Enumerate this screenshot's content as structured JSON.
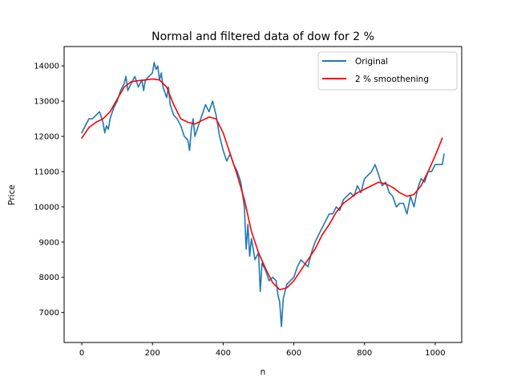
{
  "chart_data": {
    "type": "line",
    "title": "Normal and filtered data of dow for 2 %",
    "xlabel": "n",
    "ylabel": "Price",
    "xlim": [
      -50,
      1075
    ],
    "ylim": [
      6150,
      14550
    ],
    "xticks": [
      0,
      200,
      400,
      600,
      800,
      1000
    ],
    "yticks": [
      7000,
      8000,
      9000,
      10000,
      11000,
      12000,
      13000,
      14000
    ],
    "grid": false,
    "legend_position": "top-right",
    "series": [
      {
        "name": "Original",
        "color": "#1f77b4",
        "x": [
          0,
          10,
          20,
          30,
          40,
          50,
          60,
          65,
          70,
          75,
          80,
          90,
          100,
          110,
          120,
          125,
          130,
          140,
          150,
          160,
          170,
          175,
          180,
          190,
          200,
          205,
          210,
          215,
          220,
          225,
          230,
          240,
          245,
          250,
          260,
          270,
          280,
          290,
          300,
          305,
          310,
          315,
          320,
          330,
          340,
          350,
          360,
          370,
          380,
          390,
          400,
          410,
          420,
          430,
          440,
          450,
          460,
          465,
          470,
          475,
          480,
          490,
          500,
          505,
          510,
          520,
          530,
          540,
          550,
          555,
          560,
          565,
          570,
          575,
          580,
          590,
          600,
          610,
          620,
          630,
          640,
          650,
          660,
          670,
          680,
          690,
          700,
          710,
          720,
          730,
          740,
          750,
          760,
          770,
          780,
          790,
          800,
          810,
          820,
          830,
          840,
          850,
          860,
          870,
          880,
          890,
          900,
          910,
          920,
          930,
          940,
          950,
          960,
          970,
          980,
          990,
          1000,
          1010,
          1020,
          1025
        ],
        "values": [
          12100,
          12300,
          12500,
          12500,
          12600,
          12700,
          12400,
          12100,
          12300,
          12200,
          12500,
          12800,
          13000,
          13300,
          13500,
          13700,
          13300,
          13500,
          13700,
          13400,
          13600,
          13300,
          13600,
          13700,
          13800,
          14100,
          13900,
          14000,
          13600,
          13800,
          13400,
          13100,
          13400,
          12900,
          12600,
          12500,
          12300,
          12000,
          11900,
          11600,
          12200,
          12500,
          12000,
          12300,
          12600,
          12900,
          12700,
          13000,
          12600,
          12000,
          11600,
          11300,
          11500,
          11200,
          11000,
          10700,
          10000,
          8800,
          9500,
          8600,
          9100,
          8500,
          8700,
          7600,
          8400,
          8200,
          7900,
          8000,
          7900,
          7500,
          7300,
          6600,
          7400,
          7600,
          7800,
          7900,
          8000,
          8300,
          8500,
          8400,
          8300,
          8700,
          9000,
          9200,
          9400,
          9600,
          9800,
          9800,
          10000,
          9900,
          10200,
          10300,
          10400,
          10300,
          10600,
          10400,
          10800,
          10900,
          11000,
          11200,
          10900,
          10600,
          10700,
          10400,
          10300,
          10000,
          10100,
          10100,
          9800,
          10300,
          10000,
          10500,
          10800,
          10700,
          11000,
          11000,
          11200,
          11200,
          11200,
          11500
        ]
      },
      {
        "name": "2 % smoothening",
        "color": "#ff0000",
        "x": [
          0,
          20,
          40,
          60,
          80,
          100,
          120,
          140,
          160,
          180,
          200,
          220,
          240,
          260,
          280,
          300,
          320,
          340,
          360,
          380,
          400,
          420,
          440,
          460,
          480,
          500,
          520,
          540,
          560,
          580,
          600,
          620,
          640,
          660,
          680,
          700,
          720,
          740,
          760,
          780,
          800,
          820,
          840,
          860,
          880,
          900,
          920,
          940,
          960,
          980,
          1000,
          1020
        ],
        "values": [
          11950,
          12250,
          12400,
          12500,
          12700,
          13050,
          13400,
          13550,
          13580,
          13600,
          13630,
          13600,
          13400,
          12900,
          12500,
          12400,
          12350,
          12450,
          12550,
          12500,
          12100,
          11500,
          10900,
          10200,
          9300,
          8700,
          8250,
          7850,
          7650,
          7700,
          7900,
          8200,
          8500,
          8800,
          9200,
          9500,
          9850,
          10100,
          10250,
          10400,
          10500,
          10600,
          10700,
          10650,
          10550,
          10400,
          10300,
          10350,
          10600,
          11000,
          11450,
          11950
        ]
      }
    ]
  }
}
